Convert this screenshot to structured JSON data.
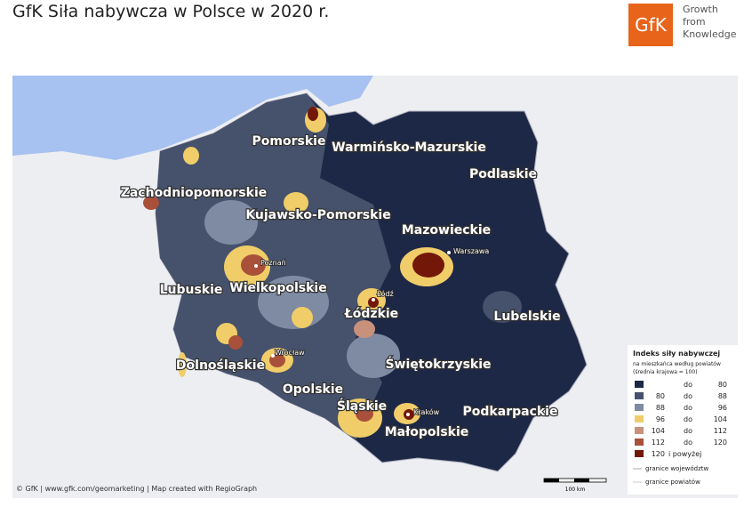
{
  "header": {
    "title": "GfK Siła nabywcza w Polsce w 2020 r.",
    "logo": {
      "mark": "GfK",
      "lines": [
        "Growth",
        "from",
        "Knowledge"
      ]
    }
  },
  "map": {
    "regions": [
      "Pomorskie",
      "Warmińsko-Mazurskie",
      "Podlaskie",
      "Zachodniopomorskie",
      "Kujawsko-Pomorskie",
      "Mazowieckie",
      "Lubuskie",
      "Wielkopolskie",
      "Łódzkie",
      "Lubelskie",
      "Dolnośląskie",
      "Świętokrzyskie",
      "Opolskie",
      "Śląskie",
      "Podkarpackie",
      "Małopolskie"
    ],
    "cities": [
      "Poznań",
      "Warszawa",
      "Łódź",
      "Wrocław",
      "Kraków"
    ],
    "scale": "100 km",
    "credit": "© GfK | www.gfk.com/geomarketing | Map created with RegioGraph"
  },
  "legend": {
    "title": "Indeks siły nabywczej",
    "subtitle": "na mieszkańca według powiatów",
    "note": "(średnia krajowa = 100)",
    "rows": [
      {
        "connector": "do",
        "to": 80,
        "color": "#1d2846"
      },
      {
        "from": 80,
        "connector": "do",
        "to": 88,
        "color": "#46526c"
      },
      {
        "from": 88,
        "connector": "do",
        "to": 96,
        "color": "#7f8aa3"
      },
      {
        "from": 96,
        "connector": "do",
        "to": 104,
        "color": "#f0cd68"
      },
      {
        "from": 104,
        "connector": "do",
        "to": 112,
        "color": "#c8917c"
      },
      {
        "from": 112,
        "connector": "do",
        "to": 120,
        "color": "#a9503a"
      },
      {
        "from": 120,
        "suffix": "i powyżej",
        "color": "#731808"
      }
    ],
    "lines": [
      "granice województw",
      "granice powiatów"
    ]
  }
}
